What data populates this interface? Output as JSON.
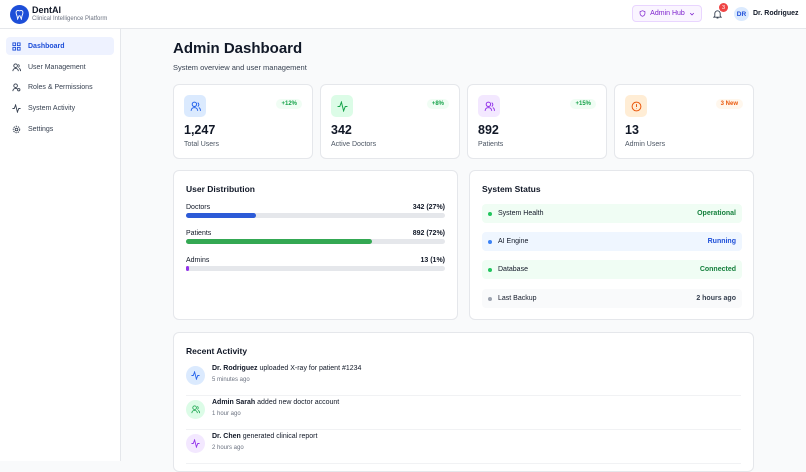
{
  "header": {
    "brand": "DentAI",
    "tagline": "Clinical Intelligence Platform",
    "hub": "Admin Hub",
    "notifications": "3",
    "avatar": "DR",
    "user": "Dr. Rodriguez"
  },
  "sidebar": {
    "items": [
      "Dashboard",
      "User Management",
      "Roles & Permissions",
      "System Activity",
      "Settings"
    ]
  },
  "page": {
    "title": "Admin Dashboard",
    "subtitle": "System overview and user management"
  },
  "stats": [
    {
      "value": "1,247",
      "label": "Total Users",
      "badge": "+12%"
    },
    {
      "value": "342",
      "label": "Active Doctors",
      "badge": "+8%"
    },
    {
      "value": "892",
      "label": "Patients",
      "badge": "+15%"
    },
    {
      "value": "13",
      "label": "Admin Users",
      "badge": "3 New"
    }
  ],
  "distribution": {
    "title": "User Distribution",
    "rows": [
      {
        "label": "Doctors",
        "value_label": "342 (27%)",
        "percent": 27
      },
      {
        "label": "Patients",
        "value_label": "892 (72%)",
        "percent": 72
      },
      {
        "label": "Admins",
        "value_label": "13 (1%)",
        "percent": 1
      }
    ]
  },
  "system_status": {
    "title": "System Status",
    "items": [
      {
        "name": "System Health",
        "status": "Operational"
      },
      {
        "name": "AI Engine",
        "status": "Running"
      },
      {
        "name": "Database",
        "status": "Connected"
      },
      {
        "name": "Last Backup",
        "status": "2 hours ago"
      }
    ]
  },
  "activity": {
    "title": "Recent Activity",
    "items": [
      {
        "actor": "Dr. Rodriguez",
        "action": "uploaded X-ray for patient #1234",
        "time": "5 minutes ago"
      },
      {
        "actor": "Admin Sarah",
        "action": "added new doctor account",
        "time": "1 hour ago"
      },
      {
        "actor": "Dr. Chen",
        "action": "generated clinical report",
        "time": "2 hours ago"
      }
    ]
  }
}
